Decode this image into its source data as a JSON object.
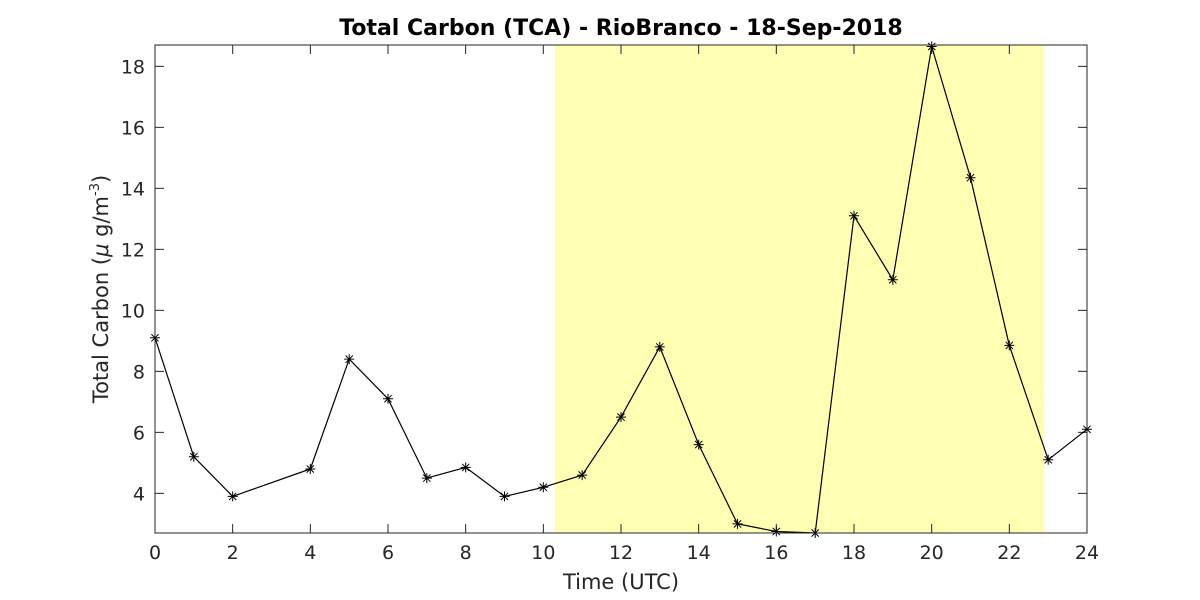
{
  "chart_data": {
    "type": "line",
    "title": "Total Carbon (TCA) - RioBranco - 18-Sep-2018",
    "xlabel": "Time (UTC)",
    "ylabel_prefix": "Total Carbon (",
    "ylabel_mu": "μ",
    "ylabel_unit": " g/m",
    "ylabel_exp": "-3",
    "ylabel_suffix": ")",
    "xlim": [
      0,
      24
    ],
    "ylim": [
      2.7,
      18.7
    ],
    "xticks": [
      0,
      2,
      4,
      6,
      8,
      10,
      12,
      14,
      16,
      18,
      20,
      22,
      24
    ],
    "yticks": [
      4,
      6,
      8,
      10,
      12,
      14,
      16,
      18
    ],
    "grid": false,
    "marker": "asterisk",
    "line_color": "#000000",
    "highlight": {
      "x_range": [
        10.3,
        22.9
      ],
      "color": "#ffffb3"
    },
    "series": [
      {
        "x": [
          0,
          1,
          2,
          4,
          5,
          6,
          7,
          8,
          9,
          10,
          11,
          12,
          13,
          14,
          15,
          16,
          17,
          18,
          19,
          20,
          21,
          22,
          23,
          24
        ],
        "y": [
          9.1,
          5.2,
          3.9,
          4.8,
          8.4,
          7.1,
          4.5,
          4.85,
          3.9,
          4.2,
          4.6,
          6.5,
          8.8,
          5.6,
          3.0,
          2.75,
          2.7,
          13.1,
          11.0,
          18.65,
          14.35,
          8.85,
          5.1,
          6.1
        ]
      }
    ]
  }
}
